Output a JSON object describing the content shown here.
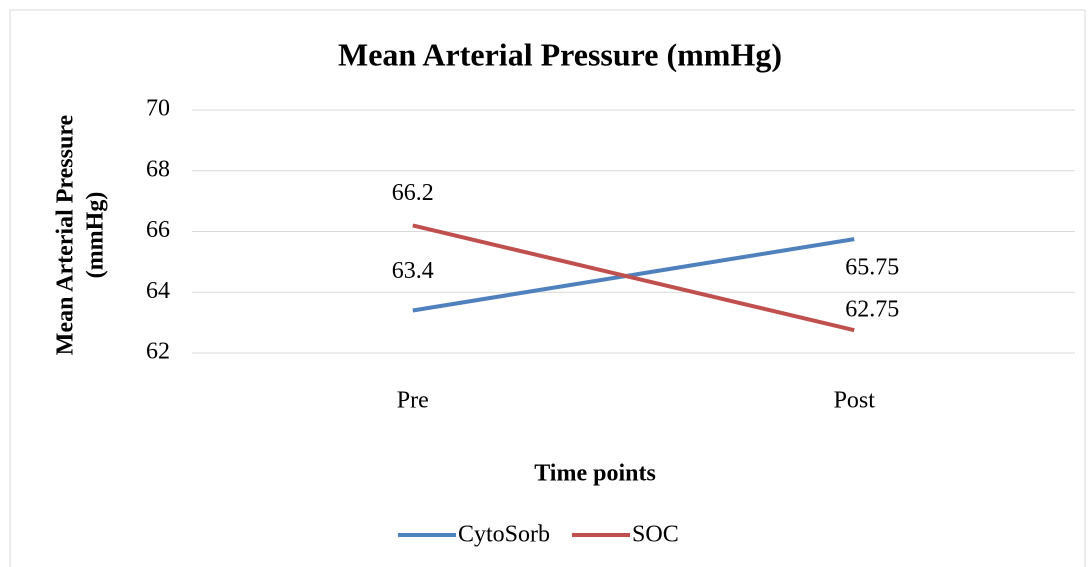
{
  "chart_data": {
    "type": "line",
    "title": "Mean Arterial Pressure (mmHg)",
    "x_label": "Time points",
    "y_label": [
      "Mean Arterial Pressure",
      "(mmHg)"
    ],
    "categories": [
      "Pre",
      "Post"
    ],
    "series": [
      {
        "name": "CytoSorb",
        "color": "#4f81bd",
        "values": [
          63.4,
          65.75
        ]
      },
      {
        "name": "SOC",
        "color": "#c0504d",
        "values": [
          66.2,
          62.75
        ]
      }
    ],
    "ylim": [
      62,
      70
    ],
    "yticks": [
      62,
      64,
      66,
      68,
      70
    ],
    "grid": true,
    "legend": "bottom"
  }
}
